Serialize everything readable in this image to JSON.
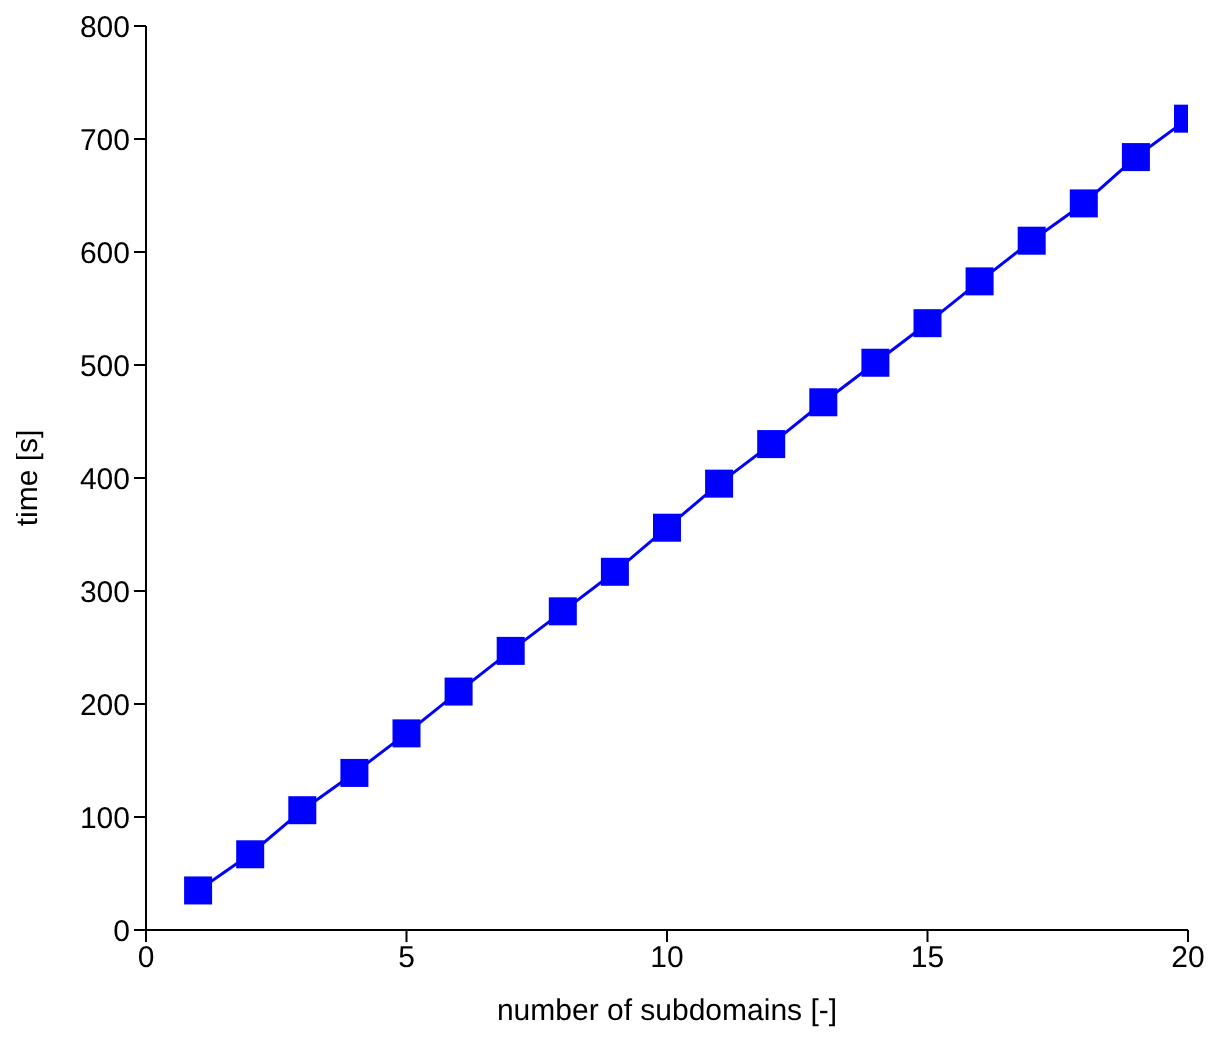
{
  "chart_data": {
    "type": "line",
    "xlabel": "number of subdomains [-]",
    "ylabel": "time [s]",
    "x": [
      1,
      2,
      3,
      4,
      5,
      6,
      7,
      8,
      9,
      10,
      11,
      12,
      13,
      14,
      15,
      16,
      17,
      18,
      19,
      20
    ],
    "series": [
      {
        "color": "#0000ff",
        "values": [
          35,
          67,
          106,
          139,
          174,
          211,
          247,
          282,
          317,
          356,
          395,
          430,
          467,
          502,
          537,
          574,
          610,
          643,
          684,
          718
        ]
      }
    ],
    "xlim": [
      0,
      20
    ],
    "xticks": [
      0,
      5,
      10,
      15,
      20
    ],
    "ylim": [
      0,
      800
    ],
    "yticks": [
      0,
      100,
      200,
      300,
      400,
      500,
      600,
      700,
      800
    ],
    "grid": false,
    "legend": false,
    "marker": "square",
    "line_style": "solid"
  }
}
